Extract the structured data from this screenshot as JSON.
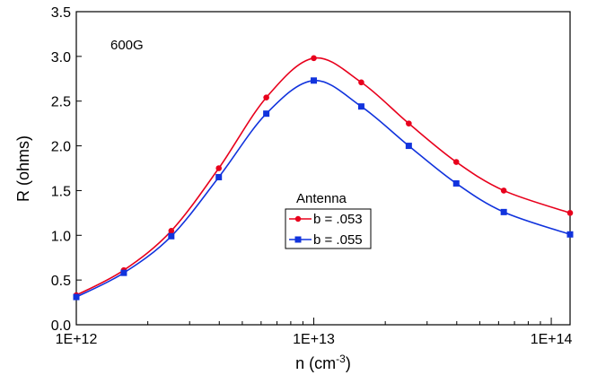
{
  "chart_data": {
    "type": "line",
    "title": "",
    "annotation": "600G",
    "xlabel": "n (cm",
    "xlabel_sup": "-3",
    "xlabel_close": ")",
    "ylabel": "R (ohms)",
    "xscale": "log",
    "xlim": [
      1000000000000.0,
      120000000000000.0
    ],
    "ylim": [
      0,
      3.5
    ],
    "xticks": [
      {
        "value": 1000000000000.0,
        "label": "1E+12"
      },
      {
        "value": 10000000000000.0,
        "label": "1E+13"
      },
      {
        "value": 100000000000000.0,
        "label": "1E+14"
      }
    ],
    "yticks": [
      {
        "value": 0.0,
        "label": "0.0"
      },
      {
        "value": 0.5,
        "label": "0.5"
      },
      {
        "value": 1.0,
        "label": "1.0"
      },
      {
        "value": 1.5,
        "label": "1.5"
      },
      {
        "value": 2.0,
        "label": "2.0"
      },
      {
        "value": 2.5,
        "label": "2.5"
      },
      {
        "value": 3.0,
        "label": "3.0"
      },
      {
        "value": 3.5,
        "label": "3.5"
      }
    ],
    "grid": false,
    "legend": {
      "title": "Antenna",
      "placement": "center"
    },
    "series": [
      {
        "name": "b = .053",
        "color": "#e8001c",
        "marker": "circle",
        "x": [
          1000000000000.0,
          1585000000000.0,
          2512000000000.0,
          3981000000000.0,
          6310000000000.0,
          10000000000000.0,
          15850000000000.0,
          25120000000000.0,
          39810000000000.0,
          63100000000000.0,
          120000000000000.0
        ],
        "y": [
          0.33,
          0.61,
          1.05,
          1.75,
          2.54,
          2.98,
          2.71,
          2.25,
          1.82,
          1.5,
          1.25
        ]
      },
      {
        "name": "b = .055",
        "color": "#1133dd",
        "marker": "square",
        "x": [
          1000000000000.0,
          1585000000000.0,
          2512000000000.0,
          3981000000000.0,
          6310000000000.0,
          10000000000000.0,
          15850000000000.0,
          25120000000000.0,
          39810000000000.0,
          63100000000000.0,
          120000000000000.0
        ],
        "y": [
          0.31,
          0.58,
          0.99,
          1.65,
          2.36,
          2.73,
          2.44,
          2.0,
          1.58,
          1.26,
          1.01
        ]
      }
    ]
  }
}
